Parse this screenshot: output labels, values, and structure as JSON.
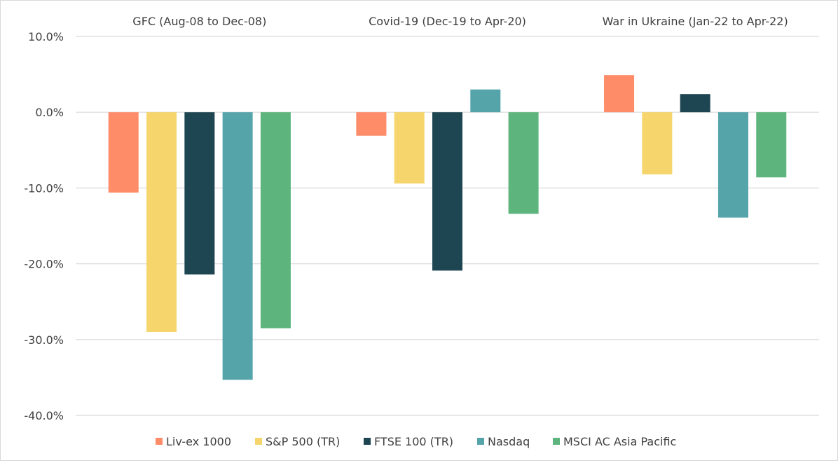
{
  "chart_data": {
    "type": "bar",
    "categories": [
      "GFC (Aug-08 to Dec-08)",
      "Covid-19 (Dec-19 to Apr-20)",
      "War in Ukraine (Jan-22 to Apr-22)"
    ],
    "series": [
      {
        "name": "Liv-ex 1000",
        "color": "#FF8C69",
        "values": [
          -10.6,
          -3.1,
          4.9
        ]
      },
      {
        "name": "S&P 500 (TR)",
        "color": "#F5D56C",
        "values": [
          -29.0,
          -9.4,
          -8.2
        ]
      },
      {
        "name": "FTSE 100 (TR)",
        "color": "#1E4652",
        "values": [
          -21.4,
          -20.9,
          2.4
        ]
      },
      {
        "name": "Nasdaq",
        "color": "#55A4AA",
        "values": [
          -35.3,
          3.0,
          -13.9
        ]
      },
      {
        "name": "MSCI AC Asia Pacific",
        "color": "#5DB57D",
        "values": [
          -28.5,
          -13.4,
          -8.6
        ]
      }
    ],
    "y_ticks": [
      "10.0%",
      "0.0%",
      "-10.0%",
      "-20.0%",
      "-30.0%",
      "-40.0%"
    ],
    "ylim": [
      -40,
      10
    ],
    "grid": true,
    "legend_position": "bottom",
    "title": "",
    "xlabel": "",
    "ylabel": ""
  }
}
